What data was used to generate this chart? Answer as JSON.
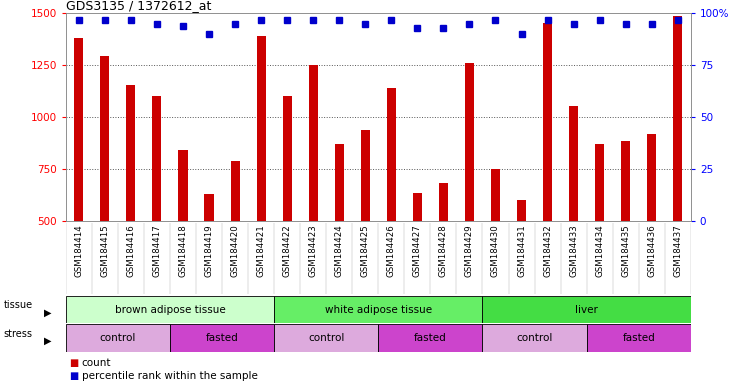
{
  "title": "GDS3135 / 1372612_at",
  "samples": [
    "GSM184414",
    "GSM184415",
    "GSM184416",
    "GSM184417",
    "GSM184418",
    "GSM184419",
    "GSM184420",
    "GSM184421",
    "GSM184422",
    "GSM184423",
    "GSM184424",
    "GSM184425",
    "GSM184426",
    "GSM184427",
    "GSM184428",
    "GSM184429",
    "GSM184430",
    "GSM184431",
    "GSM184432",
    "GSM184433",
    "GSM184434",
    "GSM184435",
    "GSM184436",
    "GSM184437"
  ],
  "counts": [
    1380,
    1295,
    1155,
    1100,
    840,
    630,
    790,
    1390,
    1100,
    1250,
    870,
    940,
    1140,
    635,
    680,
    1260,
    750,
    600,
    1455,
    1055,
    870,
    885,
    920,
    1490
  ],
  "percentile_ranks": [
    97,
    97,
    97,
    95,
    94,
    90,
    95,
    97,
    97,
    97,
    97,
    95,
    97,
    93,
    93,
    95,
    97,
    90,
    97,
    95,
    97,
    95,
    95,
    97
  ],
  "ylim_left": [
    500,
    1500
  ],
  "ylim_right": [
    0,
    100
  ],
  "yticks_left": [
    500,
    750,
    1000,
    1250,
    1500
  ],
  "yticks_right": [
    0,
    25,
    50,
    75,
    100
  ],
  "bar_color": "#cc0000",
  "dot_color": "#0000cc",
  "grid_color": "#555555",
  "tissue_groups": [
    {
      "label": "brown adipose tissue",
      "start": 0,
      "end": 7,
      "color": "#ccffcc"
    },
    {
      "label": "white adipose tissue",
      "start": 8,
      "end": 15,
      "color": "#66ee66"
    },
    {
      "label": "liver",
      "start": 16,
      "end": 23,
      "color": "#44dd44"
    }
  ],
  "stress_groups": [
    {
      "label": "control",
      "start": 0,
      "end": 3,
      "color": "#ddaadd"
    },
    {
      "label": "fasted",
      "start": 4,
      "end": 7,
      "color": "#cc44cc"
    },
    {
      "label": "control",
      "start": 8,
      "end": 11,
      "color": "#ddaadd"
    },
    {
      "label": "fasted",
      "start": 12,
      "end": 15,
      "color": "#cc44cc"
    },
    {
      "label": "control",
      "start": 16,
      "end": 19,
      "color": "#ddaadd"
    },
    {
      "label": "fasted",
      "start": 20,
      "end": 23,
      "color": "#cc44cc"
    }
  ],
  "bg_color": "#ffffff",
  "ax_bg_color": "#ffffff",
  "tick_label_bg": "#dddddd"
}
